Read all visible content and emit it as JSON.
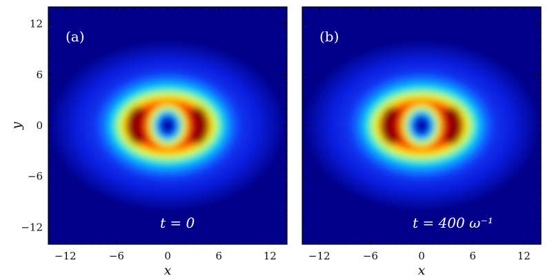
{
  "chart_data": [
    {
      "type": "heatmap",
      "panel_label": "(a)",
      "annotation": "t = 0",
      "xlabel": "x",
      "ylabel": "y",
      "xlim": [
        -14,
        14
      ],
      "ylim": [
        -14,
        14
      ],
      "xticks": [
        -12,
        -6,
        0,
        6,
        12
      ],
      "yticks": [
        -12,
        -6,
        0,
        6,
        12
      ],
      "colormap": "jet",
      "density": {
        "shape": "elliptical ring with central vortex",
        "center": [
          0,
          0
        ],
        "core_radius": 1.2,
        "peak_radius_x": 3.5,
        "peak_radius_y": 2.0,
        "outer_halo_radius_x": 9,
        "outer_halo_radius_y": 6.5
      }
    },
    {
      "type": "heatmap",
      "panel_label": "(b)",
      "annotation": "t = 400 ω⁻¹",
      "xlabel": "x",
      "ylabel": "",
      "xlim": [
        -14,
        14
      ],
      "ylim": [
        -14,
        14
      ],
      "xticks": [
        -12,
        -6,
        0,
        6,
        12
      ],
      "yticks": [
        -12,
        -6,
        0,
        6,
        12
      ],
      "colormap": "jet",
      "density": {
        "shape": "elliptical ring with central vortex",
        "center": [
          0,
          0
        ],
        "core_radius": 1.2,
        "peak_radius_x": 3.5,
        "peak_radius_y": 2.0,
        "outer_halo_radius_x": 9,
        "outer_halo_radius_y": 6.5
      }
    }
  ]
}
